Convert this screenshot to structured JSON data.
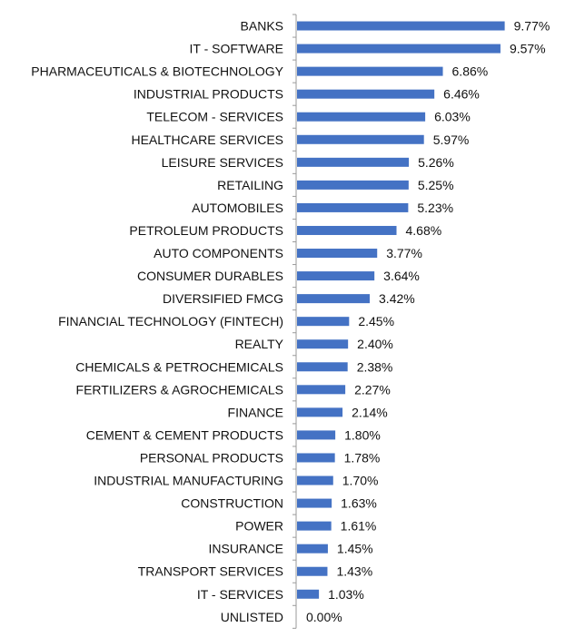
{
  "chart_data": {
    "type": "bar",
    "orientation": "horizontal",
    "categories": [
      "BANKS",
      "IT - SOFTWARE",
      "PHARMACEUTICALS & BIOTECHNOLOGY",
      "INDUSTRIAL PRODUCTS",
      "TELECOM - SERVICES",
      "HEALTHCARE SERVICES",
      "LEISURE SERVICES",
      "RETAILING",
      "AUTOMOBILES",
      "PETROLEUM PRODUCTS",
      "AUTO COMPONENTS",
      "CONSUMER DURABLES",
      "DIVERSIFIED FMCG",
      "FINANCIAL TECHNOLOGY (FINTECH)",
      "REALTY",
      "CHEMICALS & PETROCHEMICALS",
      "FERTILIZERS & AGROCHEMICALS",
      "FINANCE",
      "CEMENT & CEMENT PRODUCTS",
      "PERSONAL PRODUCTS",
      "INDUSTRIAL MANUFACTURING",
      "CONSTRUCTION",
      "POWER",
      "INSURANCE",
      "TRANSPORT SERVICES",
      "IT - SERVICES",
      "UNLISTED"
    ],
    "values": [
      9.77,
      9.57,
      6.86,
      6.46,
      6.03,
      5.97,
      5.26,
      5.25,
      5.23,
      4.68,
      3.77,
      3.64,
      3.42,
      2.45,
      2.4,
      2.38,
      2.27,
      2.14,
      1.8,
      1.78,
      1.7,
      1.63,
      1.61,
      1.45,
      1.43,
      1.03,
      0.0
    ],
    "value_labels": [
      "9.77%",
      "9.57%",
      "6.86%",
      "6.46%",
      "6.03%",
      "5.97%",
      "5.26%",
      "5.25%",
      "5.23%",
      "4.68%",
      "3.77%",
      "3.64%",
      "3.42%",
      "2.45%",
      "2.40%",
      "2.38%",
      "2.27%",
      "2.14%",
      "1.80%",
      "1.78%",
      "1.70%",
      "1.63%",
      "1.61%",
      "1.45%",
      "1.43%",
      "1.03%",
      "0.00%"
    ],
    "xlim": [
      0,
      10
    ],
    "grid": false,
    "legend": "none",
    "bar_color": "#4472C4"
  }
}
